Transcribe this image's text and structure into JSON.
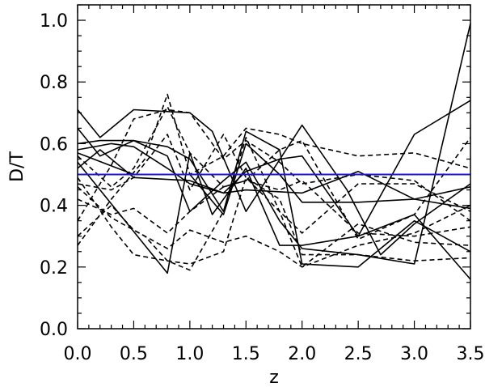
{
  "chart_data": {
    "type": "line",
    "xlabel": "z",
    "ylabel": "D/T",
    "xlim": [
      0.0,
      3.5
    ],
    "ylim": [
      0.0,
      1.05
    ],
    "x_ticks": [
      "0.0",
      "0.5",
      "1.0",
      "1.5",
      "2.0",
      "2.5",
      "3.0",
      "3.5"
    ],
    "y_ticks": [
      "0.0",
      "0.2",
      "0.4",
      "0.6",
      "0.8",
      "1.0"
    ],
    "x_minor_step": 0.1,
    "y_minor_step": 0.05,
    "grid": false,
    "legend": false,
    "line_color": "#000000",
    "reference_line_color": "#1a1acc",
    "reference_line": {
      "y": 0.5
    },
    "series": [
      {
        "style": "solid",
        "x": [
          0.0,
          0.2,
          0.5,
          0.8,
          1.0,
          1.3,
          1.5,
          1.8,
          2.0,
          2.5,
          3.0,
          3.5
        ],
        "y": [
          0.6,
          0.61,
          0.61,
          0.59,
          0.55,
          0.38,
          0.64,
          0.58,
          0.21,
          0.2,
          0.35,
          0.25
        ]
      },
      {
        "style": "solid",
        "x": [
          0.0,
          0.3,
          0.5,
          0.8,
          1.0,
          1.3,
          1.5,
          1.8,
          2.0,
          2.5,
          3.0,
          3.5
        ],
        "y": [
          0.58,
          0.6,
          0.59,
          0.52,
          0.47,
          0.44,
          0.51,
          0.55,
          0.56,
          0.3,
          0.63,
          0.74
        ]
      },
      {
        "style": "solid",
        "x": [
          0.0,
          0.5,
          1.0,
          1.3,
          1.5,
          1.8,
          2.0,
          2.5,
          3.0,
          3.5
        ],
        "y": [
          0.57,
          0.5,
          0.5,
          0.37,
          0.6,
          0.5,
          0.41,
          0.41,
          0.42,
          0.46
        ]
      },
      {
        "style": "solid",
        "x": [
          0.0,
          0.2,
          0.5,
          1.0,
          1.3,
          1.5,
          2.0,
          2.5,
          3.0,
          3.5
        ],
        "y": [
          0.52,
          0.58,
          0.49,
          0.48,
          0.44,
          0.45,
          0.44,
          0.51,
          0.42,
          0.39
        ]
      },
      {
        "style": "solid",
        "x": [
          0.0,
          0.8,
          1.0,
          1.2,
          1.5,
          1.8,
          2.0,
          2.5,
          3.0,
          3.5
        ],
        "y": [
          0.54,
          0.18,
          0.57,
          0.37,
          0.52,
          0.27,
          0.27,
          0.3,
          0.37,
          0.16
        ]
      },
      {
        "style": "solid",
        "x": [
          0.0,
          0.2,
          0.5,
          0.8,
          1.0,
          1.3,
          1.5,
          1.8,
          2.0,
          2.5,
          3.0,
          3.5
        ],
        "y": [
          0.65,
          0.56,
          0.61,
          0.56,
          0.38,
          0.48,
          0.54,
          0.35,
          0.26,
          0.24,
          0.21,
          0.99
        ]
      },
      {
        "style": "solid",
        "x": [
          0.0,
          0.2,
          0.5,
          1.0,
          1.2,
          1.5,
          2.0,
          2.4,
          2.7,
          3.0,
          3.5
        ],
        "y": [
          0.71,
          0.62,
          0.71,
          0.7,
          0.64,
          0.38,
          0.66,
          0.45,
          0.24,
          0.34,
          0.47
        ]
      },
      {
        "style": "dashed",
        "x": [
          0.0,
          0.3,
          0.6,
          0.8,
          1.0,
          1.3,
          1.5,
          1.8,
          2.0,
          2.5,
          3.0,
          3.5
        ],
        "y": [
          0.27,
          0.42,
          0.55,
          0.76,
          0.5,
          0.56,
          0.65,
          0.63,
          0.6,
          0.56,
          0.57,
          0.52
        ]
      },
      {
        "style": "dashed",
        "x": [
          0.0,
          0.3,
          0.5,
          0.8,
          1.0,
          1.3,
          1.5,
          1.8,
          2.0,
          2.5,
          3.0,
          3.5
        ],
        "y": [
          0.35,
          0.53,
          0.68,
          0.71,
          0.7,
          0.55,
          0.61,
          0.54,
          0.47,
          0.5,
          0.48,
          0.35
        ]
      },
      {
        "style": "dashed",
        "x": [
          0.0,
          0.3,
          0.5,
          0.8,
          1.0,
          1.3,
          1.5,
          1.8,
          2.0,
          2.5,
          3.0,
          3.5
        ],
        "y": [
          0.47,
          0.45,
          0.49,
          0.63,
          0.45,
          0.63,
          0.49,
          0.38,
          0.31,
          0.47,
          0.47,
          0.38
        ]
      },
      {
        "style": "dashed",
        "x": [
          0.0,
          0.3,
          0.5,
          0.8,
          1.0,
          1.3,
          1.5,
          1.8,
          2.0,
          2.5,
          3.0,
          3.5
        ],
        "y": [
          0.42,
          0.37,
          0.39,
          0.31,
          0.38,
          0.46,
          0.48,
          0.45,
          0.48,
          0.31,
          0.3,
          0.33
        ]
      },
      {
        "style": "dashed",
        "x": [
          0.0,
          0.3,
          0.5,
          0.8,
          1.0,
          1.3,
          1.5,
          1.8,
          2.0,
          2.5,
          3.0,
          3.5
        ],
        "y": [
          0.3,
          0.4,
          0.32,
          0.26,
          0.32,
          0.28,
          0.3,
          0.25,
          0.2,
          0.27,
          0.31,
          0.4
        ]
      },
      {
        "style": "dashed",
        "x": [
          0.0,
          0.3,
          0.5,
          0.8,
          1.0,
          1.3,
          1.5,
          1.8,
          2.0,
          2.5,
          3.0,
          3.5
        ],
        "y": [
          0.49,
          0.33,
          0.24,
          0.22,
          0.21,
          0.25,
          0.49,
          0.42,
          0.24,
          0.24,
          0.22,
          0.23
        ]
      },
      {
        "style": "dashed",
        "x": [
          0.0,
          0.3,
          0.6,
          0.8,
          1.0,
          1.3,
          1.5,
          1.8,
          2.0,
          2.5,
          3.0,
          3.5
        ],
        "y": [
          0.46,
          0.36,
          0.3,
          0.22,
          0.19,
          0.38,
          0.62,
          0.38,
          0.2,
          0.34,
          0.28,
          0.27
        ]
      },
      {
        "style": "dashed",
        "x": [
          0.0,
          0.3,
          0.5,
          0.8,
          1.0,
          1.3,
          1.5,
          1.8,
          2.0,
          2.5,
          3.0,
          3.5
        ],
        "y": [
          0.56,
          0.46,
          0.52,
          0.72,
          0.57,
          0.46,
          0.48,
          0.58,
          0.61,
          0.29,
          0.37,
          0.62
        ]
      }
    ]
  }
}
